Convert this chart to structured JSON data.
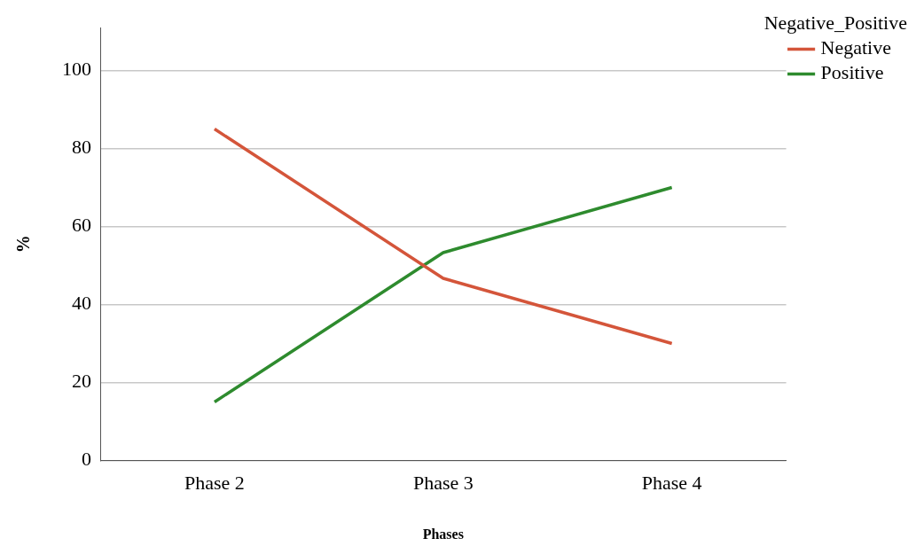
{
  "chart_data": {
    "type": "line",
    "xlabel": "Phases",
    "ylabel": "%",
    "legend_title": "Negative_Positive",
    "categories": [
      "Phase 2",
      "Phase 3",
      "Phase 4"
    ],
    "series": [
      {
        "name": "Negative",
        "color": "#d4553a",
        "values": [
          85,
          46.7,
          30
        ]
      },
      {
        "name": "Positive",
        "color": "#2e8b2e",
        "values": [
          15,
          53.3,
          70
        ]
      }
    ],
    "ylim": [
      0,
      111
    ],
    "yticks": [
      0,
      20,
      40,
      60,
      80,
      100
    ],
    "grid": "y",
    "legend": "top right",
    "marker": "none"
  }
}
